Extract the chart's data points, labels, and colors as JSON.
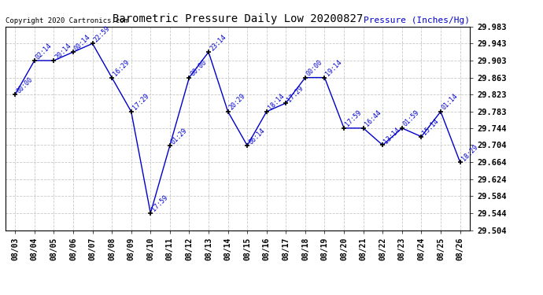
{
  "title": "Barometric Pressure Daily Low 20200827",
  "ylabel": "Pressure (Inches/Hg)",
  "copyright": "Copyright 2020 Cartronics.com",
  "ylim": [
    29.504,
    29.983
  ],
  "yticks": [
    29.504,
    29.544,
    29.584,
    29.624,
    29.664,
    29.704,
    29.744,
    29.783,
    29.823,
    29.863,
    29.903,
    29.943,
    29.983
  ],
  "dates": [
    "08/03",
    "08/04",
    "08/05",
    "08/06",
    "08/07",
    "08/08",
    "08/09",
    "08/10",
    "08/11",
    "08/12",
    "08/13",
    "08/14",
    "08/15",
    "08/16",
    "08/17",
    "08/18",
    "08/19",
    "08/20",
    "08/21",
    "08/22",
    "08/23",
    "08/24",
    "08/25",
    "08/26"
  ],
  "values": [
    29.823,
    29.903,
    29.903,
    29.923,
    29.943,
    29.863,
    29.783,
    29.544,
    29.703,
    29.863,
    29.923,
    29.783,
    29.703,
    29.783,
    29.803,
    29.863,
    29.863,
    29.744,
    29.744,
    29.704,
    29.744,
    29.724,
    29.783,
    29.664
  ],
  "time_labels": [
    "00:00",
    "02:14",
    "20:14",
    "00:14",
    "22:59",
    "16:29",
    "17:29",
    "17:59",
    "01:29",
    "00:00",
    "23:14",
    "20:29",
    "06:14",
    "18:14",
    "17:29",
    "00:00",
    "19:14",
    "17:59",
    "16:44",
    "13:14",
    "01:59",
    "15:14",
    "01:14",
    "18:29"
  ],
  "line_color": "#0000cc",
  "marker_color": "#000000",
  "background_color": "#ffffff",
  "grid_color": "#bbbbbb",
  "title_color": "#000000",
  "ylabel_color": "#0000cc",
  "copyright_color": "#000000",
  "label_color": "#0000cc"
}
